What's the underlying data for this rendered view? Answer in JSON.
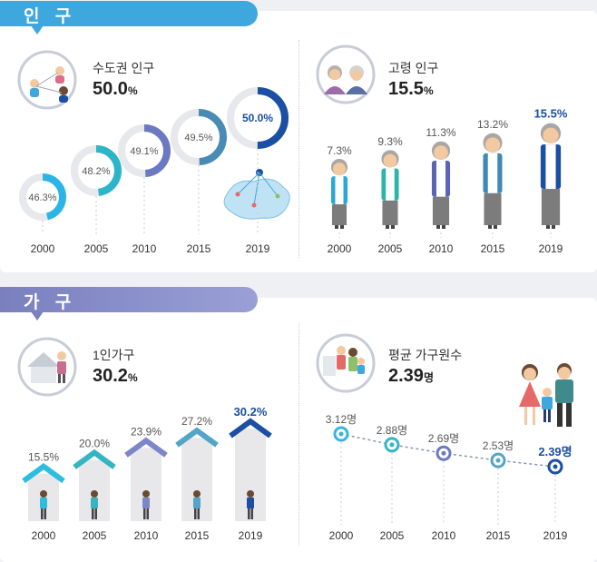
{
  "sections": [
    {
      "id": "population",
      "title": "인 구",
      "color": "#3ea7de"
    },
    {
      "id": "households",
      "title": "가 구",
      "color": "#8a8fcb"
    }
  ],
  "years": [
    "2000",
    "2005",
    "2010",
    "2015",
    "2019"
  ],
  "chart_data": [
    {
      "type": "donut-series",
      "title": "수도권 인구",
      "headline_value": "50.0",
      "headline_unit": "%",
      "categories": [
        "2000",
        "2005",
        "2010",
        "2015",
        "2019"
      ],
      "values": [
        46.3,
        48.2,
        49.1,
        49.5,
        50.0
      ],
      "labels": [
        "46.3%",
        "48.2%",
        "49.1%",
        "49.5%",
        "50.0%"
      ],
      "colors": [
        "#29b6e6",
        "#2cb5c8",
        "#6b78c2",
        "#4a8bb5",
        "#1a4fa3"
      ],
      "ylim": [
        0,
        100
      ]
    },
    {
      "type": "pictogram-bar",
      "title": "고령 인구",
      "headline_value": "15.5",
      "headline_unit": "%",
      "categories": [
        "2000",
        "2005",
        "2010",
        "2015",
        "2019"
      ],
      "values": [
        7.3,
        9.3,
        11.3,
        13.2,
        15.5
      ],
      "labels": [
        "7.3%",
        "9.3%",
        "11.3%",
        "13.2%",
        "15.5%"
      ],
      "highlight_last": true
    },
    {
      "type": "bar",
      "title": "1인가구",
      "headline_value": "30.2",
      "headline_unit": "%",
      "categories": [
        "2000",
        "2005",
        "2010",
        "2015",
        "2019"
      ],
      "values": [
        15.5,
        20.0,
        23.9,
        27.2,
        30.2
      ],
      "labels": [
        "15.5%",
        "20.0%",
        "23.9%",
        "27.2%",
        "30.2%"
      ],
      "roof_colors": [
        "#2cbde0",
        "#35b5c2",
        "#7d86c8",
        "#52a5c9",
        "#1a4fa3"
      ],
      "highlight_last": true
    },
    {
      "type": "line",
      "title": "평균 가구원수",
      "headline_value": "2.39",
      "headline_unit": "명",
      "categories": [
        "2000",
        "2005",
        "2010",
        "2015",
        "2019"
      ],
      "values": [
        3.12,
        2.88,
        2.69,
        2.53,
        2.39
      ],
      "labels": [
        "3.12명",
        "2.88명",
        "2.69명",
        "2.53명",
        "2.39명"
      ],
      "colors": [
        "#35b5e0",
        "#35b5c8",
        "#6b78c2",
        "#52a5c9",
        "#1a4fa3"
      ],
      "highlight_last": true
    }
  ]
}
